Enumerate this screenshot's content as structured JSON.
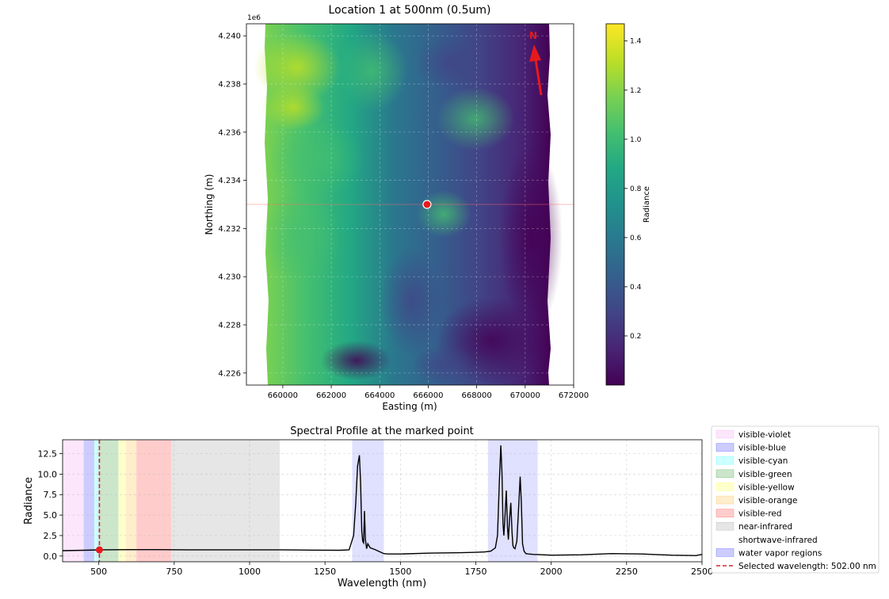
{
  "chart_data": [
    {
      "type": "heatmap",
      "title": "Location 1 at 500nm (0.5um)",
      "xlabel": "Easting (m)",
      "ylabel": "Northing (m)",
      "y_offset_label": "1e6",
      "xlim": [
        658500,
        672000
      ],
      "ylim": [
        4225500,
        4240500
      ],
      "x_ticks": [
        660000,
        662000,
        664000,
        666000,
        668000,
        670000,
        672000
      ],
      "x_tick_labels": [
        "660000",
        "662000",
        "664000",
        "666000",
        "668000",
        "670000",
        "672000"
      ],
      "y_ticks": [
        4226000,
        4228000,
        4230000,
        4232000,
        4234000,
        4236000,
        4238000,
        4240000
      ],
      "y_tick_labels": [
        "4.226",
        "4.228",
        "4.230",
        "4.232",
        "4.234",
        "4.236",
        "4.238",
        "4.240"
      ],
      "grid": true,
      "colormap": "viridis",
      "colorbar": {
        "label": "Radiance",
        "range": [
          0.0,
          1.47
        ],
        "ticks": [
          0.2,
          0.4,
          0.6,
          0.8,
          1.0,
          1.2,
          1.4
        ],
        "tick_labels": [
          "0.2",
          "0.4",
          "0.6",
          "0.8",
          "1.0",
          "1.2",
          "1.4"
        ]
      },
      "marked_point": {
        "x": 665950,
        "y": 4233000,
        "color": "#e8191c"
      },
      "north_arrow": {
        "label": "N",
        "color": "#e8191c"
      }
    },
    {
      "type": "line",
      "title": "Spectral Profile at the marked point",
      "xlabel": "Wavelength (nm)",
      "ylabel": "Radiance",
      "xlim": [
        380,
        2500
      ],
      "ylim": [
        -0.7,
        14.2
      ],
      "x_ticks": [
        500,
        750,
        1000,
        1250,
        1500,
        1750,
        2000,
        2250,
        2500
      ],
      "x_tick_labels": [
        "500",
        "750",
        "1000",
        "1250",
        "1500",
        "1750",
        "2000",
        "2250",
        "2500"
      ],
      "y_ticks": [
        0.0,
        2.5,
        5.0,
        7.5,
        10.0,
        12.5
      ],
      "y_tick_labels": [
        "0.0",
        "2.5",
        "5.0",
        "7.5",
        "10.0",
        "12.5"
      ],
      "grid": true,
      "legend_position": "right",
      "bands": [
        {
          "name": "visible-violet",
          "range": [
            380,
            450
          ],
          "color": "#ee82ee"
        },
        {
          "name": "visible-blue",
          "range": [
            450,
            485
          ],
          "color": "#0000ff"
        },
        {
          "name": "visible-cyan",
          "range": [
            485,
            500
          ],
          "color": "#00ffff"
        },
        {
          "name": "visible-green",
          "range": [
            500,
            565
          ],
          "color": "#008000"
        },
        {
          "name": "visible-yellow",
          "range": [
            565,
            590
          ],
          "color": "#ffff00"
        },
        {
          "name": "visible-orange",
          "range": [
            590,
            625
          ],
          "color": "#ffa500"
        },
        {
          "name": "visible-red",
          "range": [
            625,
            740
          ],
          "color": "#ff0000"
        },
        {
          "name": "near-infrared",
          "range": [
            740,
            1100
          ],
          "color": "#808080"
        },
        {
          "name": "shortwave-infrared",
          "range": [
            1100,
            2500
          ],
          "color": "#ffffff"
        }
      ],
      "water_vapor": {
        "name": "water vapor regions",
        "ranges": [
          [
            1340,
            1445
          ],
          [
            1790,
            1955
          ]
        ],
        "color": "#0000ff"
      },
      "selected_wavelength": {
        "name": "Selected wavelength: 502.00 nm",
        "value": 502,
        "radiance": 0.75,
        "color": "#d62728"
      },
      "series": [
        {
          "name": "",
          "x": [
            380,
            450,
            500,
            600,
            700,
            800,
            900,
            1000,
            1100,
            1200,
            1300,
            1330,
            1345,
            1352,
            1358,
            1364,
            1368,
            1372,
            1375,
            1378,
            1381,
            1384,
            1388,
            1392,
            1400,
            1415,
            1430,
            1445,
            1460,
            1500,
            1600,
            1700,
            1750,
            1780,
            1800,
            1815,
            1822,
            1828,
            1833,
            1837,
            1840,
            1843,
            1847,
            1851,
            1855,
            1858,
            1862,
            1866,
            1870,
            1873,
            1876,
            1880,
            1886,
            1892,
            1897,
            1901,
            1905,
            1910,
            1916,
            1925,
            1940,
            1960,
            2000,
            2100,
            2200,
            2300,
            2400,
            2480,
            2500
          ],
          "y": [
            0.65,
            0.7,
            0.75,
            0.78,
            0.78,
            0.76,
            0.76,
            0.76,
            0.76,
            0.72,
            0.7,
            0.75,
            2.5,
            6.5,
            11.0,
            12.3,
            9.0,
            3.0,
            1.8,
            1.6,
            5.5,
            2.0,
            0.9,
            1.5,
            1.0,
            0.8,
            0.55,
            0.3,
            0.25,
            0.25,
            0.35,
            0.4,
            0.45,
            0.5,
            0.6,
            1.0,
            2.5,
            9.0,
            13.5,
            10.0,
            4.0,
            2.5,
            5.0,
            8.0,
            3.5,
            2.0,
            4.5,
            6.5,
            3.0,
            1.3,
            1.0,
            0.9,
            1.8,
            6.0,
            9.7,
            6.5,
            1.5,
            0.6,
            0.3,
            0.25,
            0.2,
            0.18,
            0.1,
            0.15,
            0.3,
            0.25,
            0.1,
            0.05,
            0.2
          ]
        }
      ]
    }
  ]
}
